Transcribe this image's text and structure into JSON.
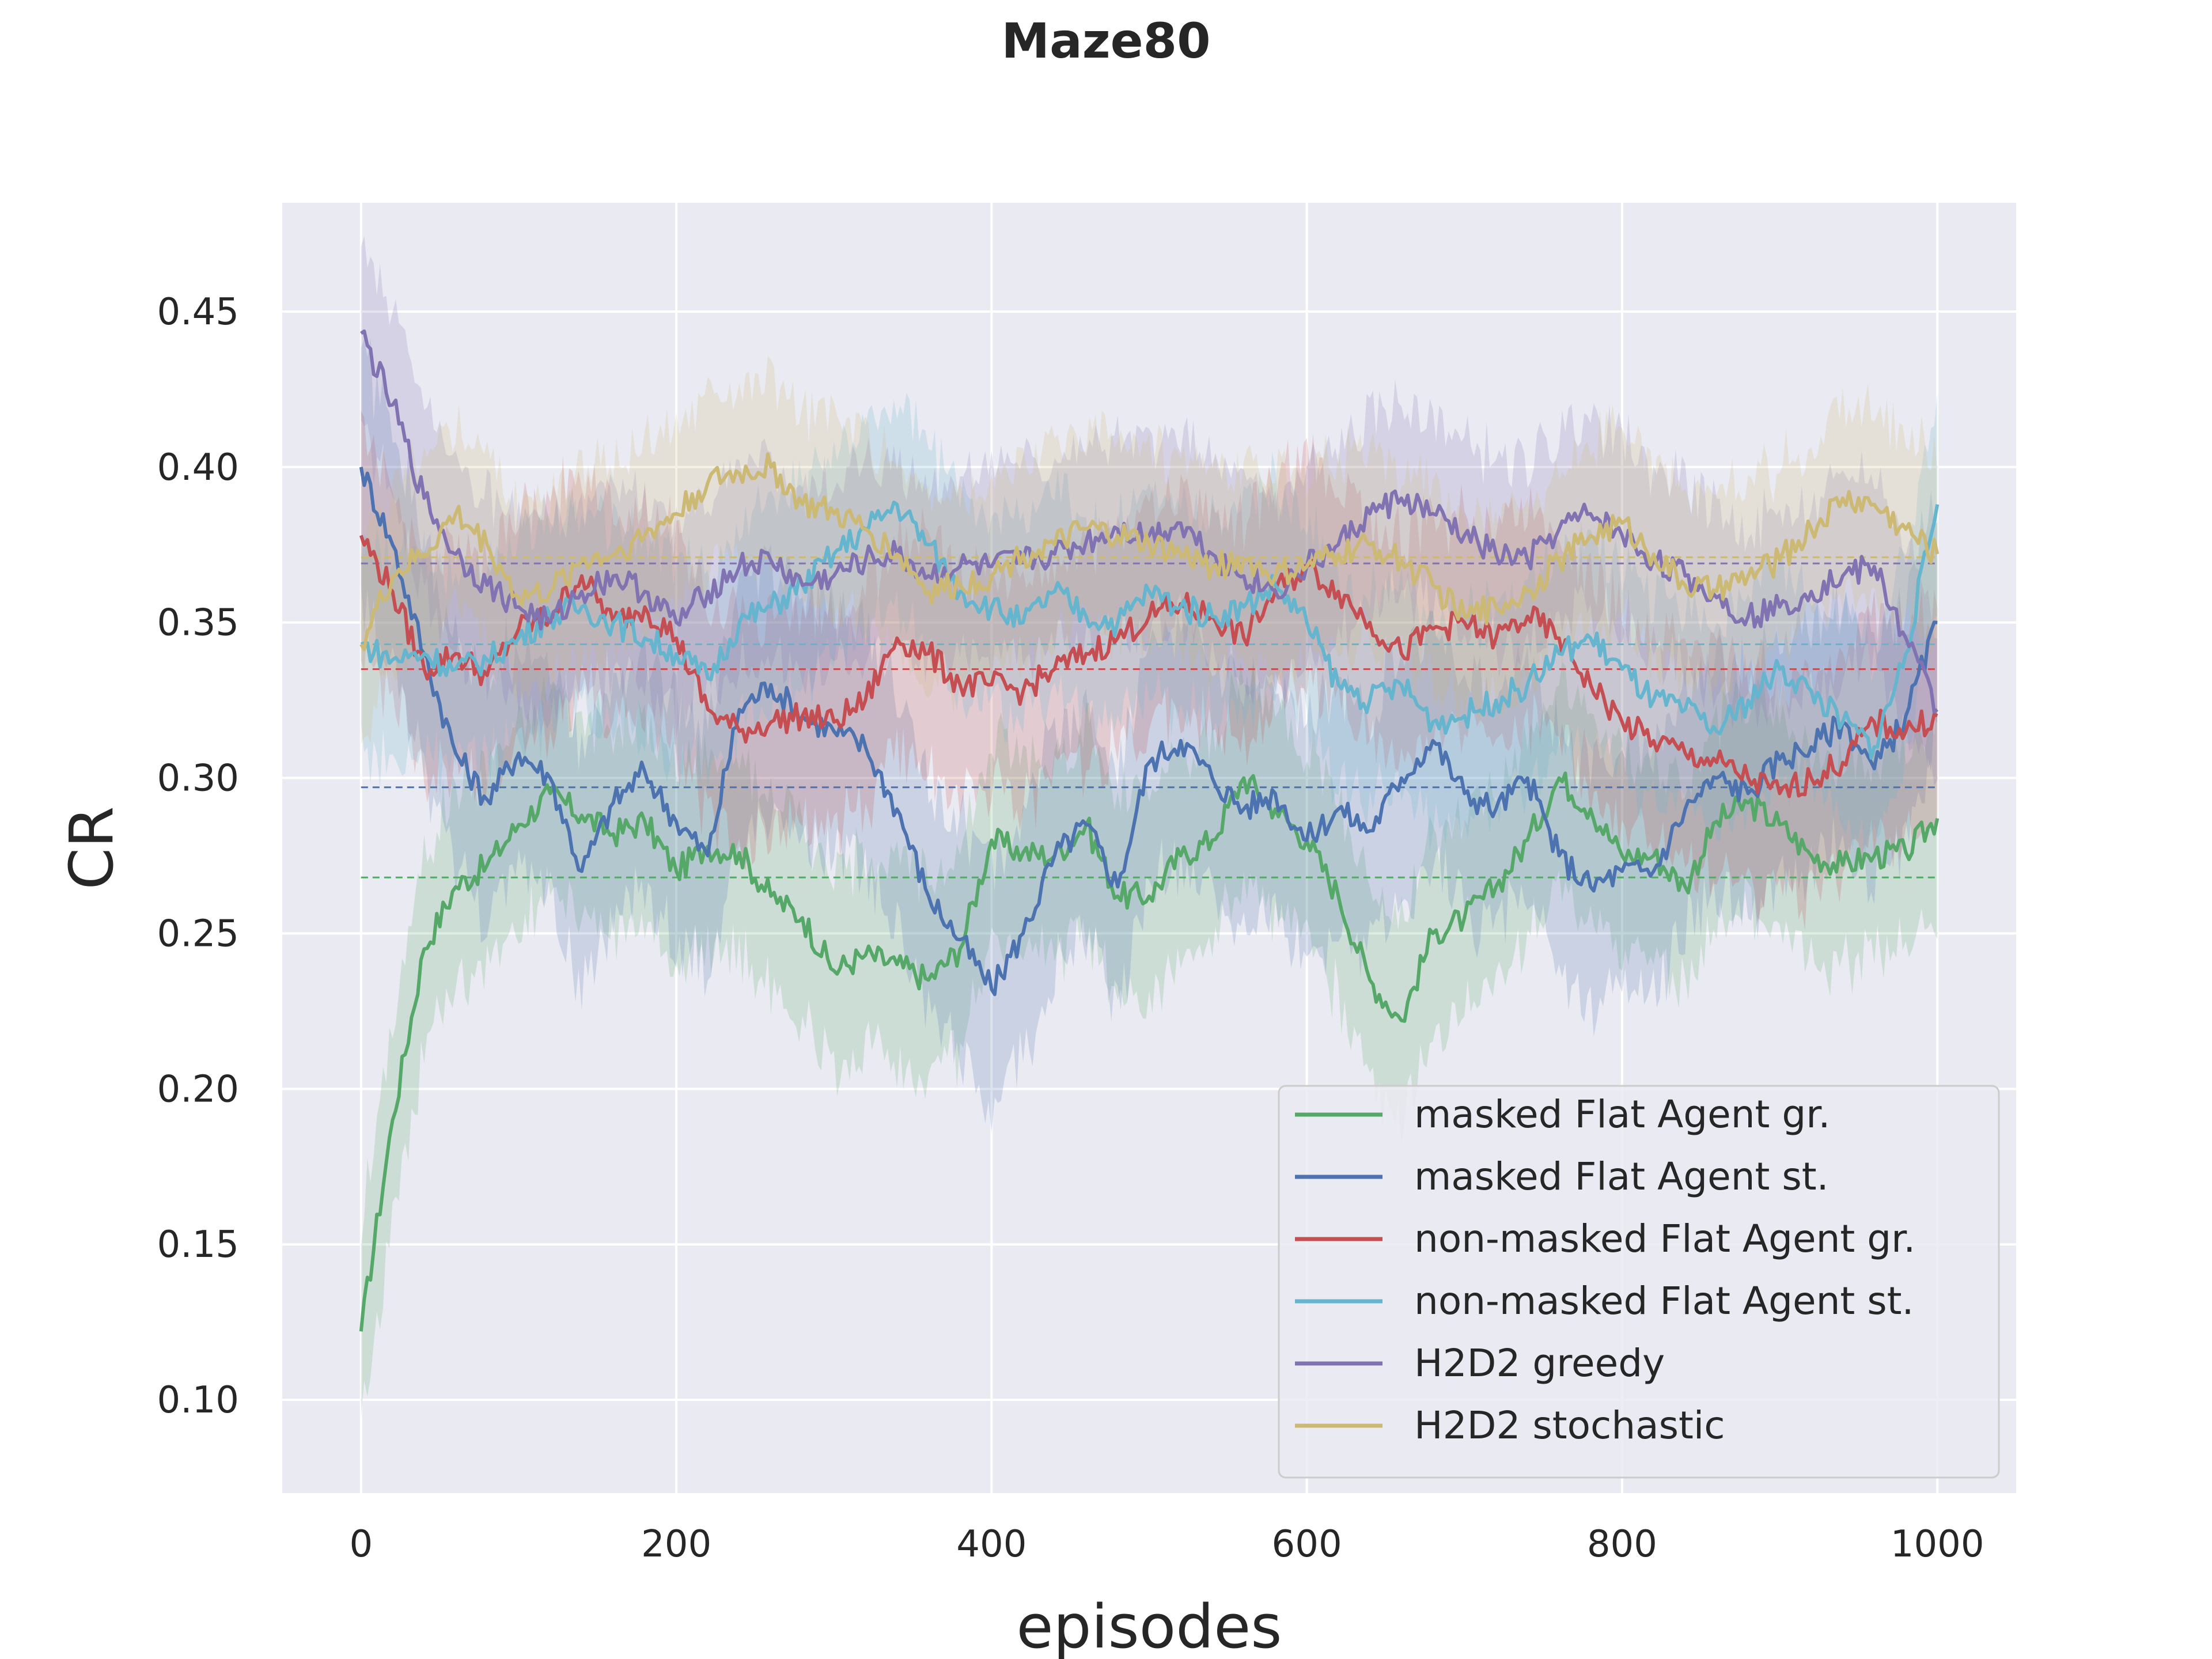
{
  "chart_data": {
    "type": "line",
    "title": "Maze80",
    "xlabel": "episodes",
    "ylabel": "CR",
    "xlim": [
      -50,
      1050
    ],
    "ylim": [
      0.07,
      0.485
    ],
    "x_ticks": [
      0,
      200,
      400,
      600,
      800,
      1000
    ],
    "x_tick_labels": [
      "0",
      "200",
      "400",
      "600",
      "800",
      "1000"
    ],
    "y_ticks": [
      0.1,
      0.15,
      0.2,
      0.25,
      0.3,
      0.35,
      0.4,
      0.45
    ],
    "y_tick_labels": [
      "0.10",
      "0.15",
      "0.20",
      "0.25",
      "0.30",
      "0.35",
      "0.40",
      "0.45"
    ],
    "grid": true,
    "legend_position": "lower-right",
    "background_color": "#eaeaf2",
    "series": [
      {
        "name": "masked Flat Agent gr.",
        "color": "#55a868",
        "mean": 0.268,
        "band": 0.032,
        "x": [
          0,
          20,
          40,
          60,
          80,
          100,
          120,
          140,
          160,
          180,
          200,
          220,
          240,
          260,
          280,
          300,
          320,
          340,
          360,
          380,
          400,
          420,
          440,
          460,
          480,
          500,
          520,
          540,
          560,
          580,
          600,
          620,
          640,
          660,
          680,
          700,
          720,
          740,
          760,
          780,
          800,
          820,
          840,
          860,
          880,
          900,
          920,
          940,
          960,
          980,
          1000
        ],
        "y": [
          0.122,
          0.19,
          0.245,
          0.265,
          0.272,
          0.285,
          0.295,
          0.288,
          0.282,
          0.286,
          0.27,
          0.278,
          0.276,
          0.262,
          0.255,
          0.238,
          0.243,
          0.24,
          0.235,
          0.245,
          0.28,
          0.276,
          0.275,
          0.285,
          0.262,
          0.262,
          0.275,
          0.28,
          0.3,
          0.29,
          0.28,
          0.262,
          0.235,
          0.222,
          0.25,
          0.255,
          0.265,
          0.28,
          0.3,
          0.29,
          0.275,
          0.275,
          0.265,
          0.286,
          0.292,
          0.285,
          0.275,
          0.272,
          0.275,
          0.276,
          0.287
        ]
      },
      {
        "name": "masked Flat Agent st.",
        "color": "#4c72b0",
        "mean": 0.297,
        "band": 0.038,
        "x": [
          0,
          20,
          40,
          60,
          80,
          100,
          120,
          140,
          160,
          180,
          200,
          220,
          240,
          260,
          280,
          300,
          320,
          340,
          360,
          380,
          400,
          420,
          440,
          460,
          480,
          500,
          520,
          540,
          560,
          580,
          600,
          620,
          640,
          660,
          680,
          700,
          720,
          740,
          760,
          780,
          800,
          820,
          840,
          860,
          880,
          900,
          920,
          940,
          960,
          980,
          1000
        ],
        "y": [
          0.4,
          0.375,
          0.34,
          0.308,
          0.293,
          0.308,
          0.3,
          0.27,
          0.292,
          0.302,
          0.286,
          0.275,
          0.322,
          0.33,
          0.32,
          0.315,
          0.31,
          0.29,
          0.262,
          0.248,
          0.232,
          0.25,
          0.275,
          0.285,
          0.265,
          0.305,
          0.312,
          0.3,
          0.29,
          0.295,
          0.28,
          0.29,
          0.283,
          0.3,
          0.312,
          0.295,
          0.29,
          0.3,
          0.275,
          0.265,
          0.27,
          0.27,
          0.29,
          0.3,
          0.295,
          0.306,
          0.31,
          0.318,
          0.303,
          0.32,
          0.35
        ]
      },
      {
        "name": "non-masked Flat Agent gr.",
        "color": "#c44e52",
        "mean": 0.335,
        "band": 0.035,
        "x": [
          0,
          20,
          40,
          60,
          80,
          100,
          120,
          140,
          160,
          180,
          200,
          220,
          240,
          260,
          280,
          300,
          320,
          340,
          360,
          380,
          400,
          420,
          440,
          460,
          480,
          500,
          520,
          540,
          560,
          580,
          600,
          620,
          640,
          660,
          680,
          700,
          720,
          740,
          760,
          780,
          800,
          820,
          840,
          860,
          880,
          900,
          920,
          940,
          960,
          980,
          1000
        ],
        "y": [
          0.378,
          0.36,
          0.335,
          0.34,
          0.333,
          0.348,
          0.352,
          0.365,
          0.35,
          0.355,
          0.345,
          0.322,
          0.315,
          0.318,
          0.32,
          0.318,
          0.325,
          0.345,
          0.34,
          0.33,
          0.33,
          0.328,
          0.335,
          0.34,
          0.345,
          0.352,
          0.356,
          0.352,
          0.345,
          0.36,
          0.368,
          0.36,
          0.35,
          0.34,
          0.348,
          0.35,
          0.345,
          0.352,
          0.345,
          0.33,
          0.318,
          0.312,
          0.308,
          0.305,
          0.3,
          0.295,
          0.3,
          0.305,
          0.318,
          0.315,
          0.32
        ]
      },
      {
        "name": "non-masked Flat Agent st.",
        "color": "#64b5cd",
        "mean": 0.343,
        "band": 0.032,
        "x": [
          0,
          20,
          40,
          60,
          80,
          100,
          120,
          140,
          160,
          180,
          200,
          220,
          240,
          260,
          280,
          300,
          320,
          340,
          360,
          380,
          400,
          420,
          440,
          460,
          480,
          500,
          520,
          540,
          560,
          580,
          600,
          620,
          640,
          660,
          680,
          700,
          720,
          740,
          760,
          780,
          800,
          820,
          840,
          860,
          880,
          900,
          920,
          940,
          960,
          980,
          1000
        ],
        "y": [
          0.343,
          0.338,
          0.34,
          0.335,
          0.338,
          0.345,
          0.352,
          0.355,
          0.35,
          0.345,
          0.34,
          0.332,
          0.35,
          0.355,
          0.362,
          0.372,
          0.38,
          0.388,
          0.375,
          0.36,
          0.355,
          0.35,
          0.36,
          0.352,
          0.35,
          0.36,
          0.355,
          0.352,
          0.355,
          0.362,
          0.35,
          0.33,
          0.325,
          0.33,
          0.318,
          0.32,
          0.325,
          0.33,
          0.34,
          0.345,
          0.335,
          0.325,
          0.322,
          0.315,
          0.325,
          0.335,
          0.328,
          0.318,
          0.31,
          0.34,
          0.388
        ]
      },
      {
        "name": "H2D2 greedy",
        "color": "#8172b2",
        "mean": 0.369,
        "band": 0.03,
        "x": [
          0,
          20,
          40,
          60,
          80,
          100,
          120,
          140,
          160,
          180,
          200,
          220,
          240,
          260,
          280,
          300,
          320,
          340,
          360,
          380,
          400,
          420,
          440,
          460,
          480,
          500,
          520,
          540,
          560,
          580,
          600,
          620,
          640,
          660,
          680,
          700,
          720,
          740,
          760,
          780,
          800,
          820,
          840,
          860,
          880,
          900,
          920,
          940,
          960,
          980,
          1000
        ],
        "y": [
          0.443,
          0.42,
          0.39,
          0.372,
          0.362,
          0.355,
          0.35,
          0.36,
          0.365,
          0.36,
          0.35,
          0.36,
          0.368,
          0.37,
          0.362,
          0.365,
          0.37,
          0.372,
          0.365,
          0.368,
          0.368,
          0.37,
          0.372,
          0.376,
          0.38,
          0.378,
          0.382,
          0.372,
          0.365,
          0.36,
          0.368,
          0.375,
          0.385,
          0.39,
          0.385,
          0.378,
          0.372,
          0.37,
          0.38,
          0.385,
          0.378,
          0.37,
          0.365,
          0.358,
          0.352,
          0.355,
          0.36,
          0.365,
          0.368,
          0.345,
          0.322
        ]
      },
      {
        "name": "H2D2 stochastic",
        "color": "#ccb974",
        "mean": 0.371,
        "band": 0.03,
        "x": [
          0,
          20,
          40,
          60,
          80,
          100,
          120,
          140,
          160,
          180,
          200,
          220,
          240,
          260,
          280,
          300,
          320,
          340,
          360,
          380,
          400,
          420,
          440,
          460,
          480,
          500,
          520,
          540,
          560,
          580,
          600,
          620,
          640,
          660,
          680,
          700,
          720,
          740,
          760,
          780,
          800,
          820,
          840,
          860,
          880,
          900,
          920,
          940,
          960,
          980,
          1000
        ],
        "y": [
          0.343,
          0.365,
          0.372,
          0.385,
          0.375,
          0.358,
          0.36,
          0.37,
          0.372,
          0.378,
          0.385,
          0.395,
          0.398,
          0.4,
          0.388,
          0.385,
          0.38,
          0.372,
          0.36,
          0.362,
          0.365,
          0.372,
          0.375,
          0.38,
          0.378,
          0.375,
          0.372,
          0.368,
          0.37,
          0.365,
          0.368,
          0.372,
          0.375,
          0.37,
          0.362,
          0.352,
          0.355,
          0.36,
          0.37,
          0.378,
          0.382,
          0.372,
          0.362,
          0.36,
          0.365,
          0.37,
          0.38,
          0.39,
          0.388,
          0.38,
          0.372
        ]
      }
    ]
  }
}
